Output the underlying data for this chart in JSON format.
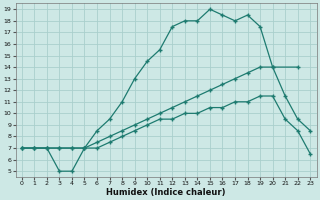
{
  "xlabel": "Humidex (Indice chaleur)",
  "bg_color": "#cde8e5",
  "grid_color": "#aacfcc",
  "line_color": "#1e7b70",
  "xlim": [
    -0.5,
    23.5
  ],
  "ylim": [
    4.5,
    19.5
  ],
  "xticks": [
    0,
    1,
    2,
    3,
    4,
    5,
    6,
    7,
    8,
    9,
    10,
    11,
    12,
    13,
    14,
    15,
    16,
    17,
    18,
    19,
    20,
    21,
    22,
    23
  ],
  "yticks": [
    5,
    6,
    7,
    8,
    9,
    10,
    11,
    12,
    13,
    14,
    15,
    16,
    17,
    18,
    19
  ],
  "line1_x": [
    0,
    1,
    2,
    3,
    4,
    5,
    6,
    7,
    8,
    9,
    10,
    11,
    12,
    13,
    14,
    15,
    16,
    17,
    18,
    19,
    20,
    22
  ],
  "line1_y": [
    7,
    7,
    7,
    5,
    5,
    7,
    8.5,
    9.5,
    11,
    13,
    14.5,
    15.5,
    17.5,
    18,
    18,
    19,
    18.5,
    18,
    18.5,
    17.5,
    14,
    14
  ],
  "line2_x": [
    0,
    1,
    2,
    3,
    4,
    5,
    6,
    7,
    8,
    9,
    10,
    11,
    12,
    13,
    14,
    15,
    16,
    17,
    18,
    19,
    20,
    21,
    22,
    23
  ],
  "line2_y": [
    7,
    7,
    7,
    7,
    7,
    7,
    7.5,
    8,
    8.5,
    9,
    9.5,
    10,
    10.5,
    11,
    11.5,
    12,
    12.5,
    13,
    13.5,
    14,
    14,
    11.5,
    9.5,
    8.5
  ],
  "line3_x": [
    0,
    1,
    2,
    3,
    4,
    5,
    6,
    7,
    8,
    9,
    10,
    11,
    12,
    13,
    14,
    15,
    16,
    17,
    18,
    19,
    20,
    21,
    22,
    23
  ],
  "line3_y": [
    7,
    7,
    7,
    7,
    7,
    7,
    7,
    7.5,
    8,
    8.5,
    9,
    9.5,
    9.5,
    10,
    10,
    10.5,
    10.5,
    11,
    11,
    11.5,
    11.5,
    9.5,
    8.5,
    6.5
  ]
}
